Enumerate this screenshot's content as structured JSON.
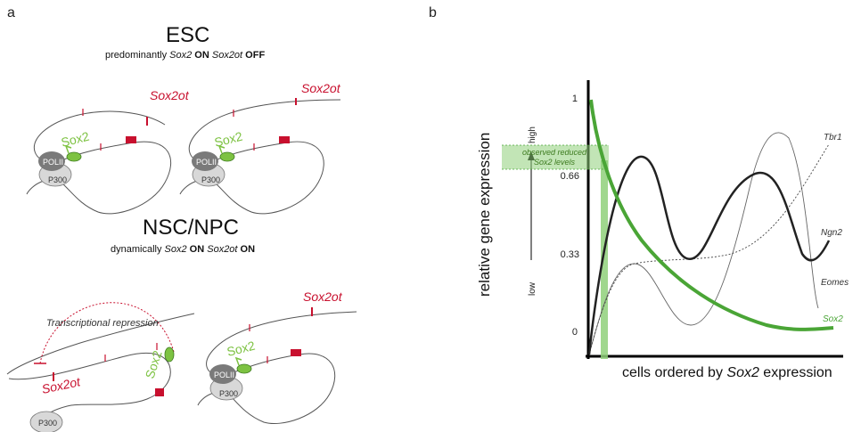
{
  "panel_a": {
    "letter": "a",
    "esc": {
      "title": "ESC",
      "subtitle_parts": [
        "predominantly ",
        "Sox2",
        " ON ",
        "Sox2ot",
        " OFF"
      ]
    },
    "nsc": {
      "title": "NSC/NPC",
      "subtitle_parts": [
        "dynamically ",
        "Sox2",
        " ON ",
        "Sox2ot",
        " ON"
      ]
    },
    "labels": {
      "sox2ot": "Sox2ot",
      "sox2": "Sox2",
      "polii": "POLII",
      "p300": "P300",
      "repression": "Transcriptional repression"
    },
    "colors": {
      "red": "#c8102e",
      "green": "#7dc242",
      "dna": "#555555"
    }
  },
  "panel_b": {
    "letter": "b",
    "ylabel": "relative gene expression",
    "ytick_labels": [
      "1",
      "0.66",
      "0.33",
      "0"
    ],
    "y_arrow_low": "low",
    "y_arrow_high": "high",
    "xlabel_parts": [
      "cells ordered by ",
      "Sox2",
      " expression"
    ],
    "annotation_lines": [
      "observed reduced",
      "Sox2 levels"
    ],
    "series_labels": {
      "tbr1": "Tbr1",
      "ngn2": "Ngn2",
      "eomes": "Eomes",
      "sox2": "Sox2"
    },
    "colors": {
      "sox2": "#4aa536",
      "highlight": "#8fd07a"
    }
  }
}
